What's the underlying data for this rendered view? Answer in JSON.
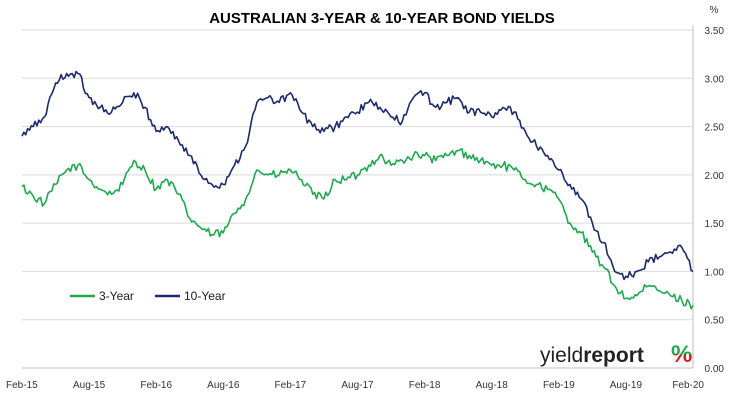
{
  "chart_data": {
    "type": "line",
    "title": "AUSTRALIAN 3-YEAR & 10-YEAR BOND YIELDS",
    "y_unit": "%",
    "ylim": [
      0,
      3.5
    ],
    "y_ticks": [
      "0.00",
      "0.50",
      "1.00",
      "1.50",
      "2.00",
      "2.50",
      "3.00",
      "3.50"
    ],
    "x_ticks": [
      "Feb-15",
      "Aug-15",
      "Feb-16",
      "Aug-16",
      "Feb-17",
      "Aug-17",
      "Feb-18",
      "Aug-18",
      "Feb-19",
      "Aug-19",
      "Feb-20"
    ],
    "grid": "horizontal",
    "legend_position": "lower-left",
    "series": [
      {
        "name": "3-Year",
        "color": "#1fa84f",
        "x": [
          "2015-02",
          "2015-03",
          "2015-04",
          "2015-05",
          "2015-06",
          "2015-07",
          "2015-08",
          "2015-09",
          "2015-10",
          "2015-11",
          "2015-12",
          "2016-01",
          "2016-02",
          "2016-03",
          "2016-04",
          "2016-05",
          "2016-06",
          "2016-07",
          "2016-08",
          "2016-09",
          "2016-10",
          "2016-11",
          "2016-12",
          "2017-01",
          "2017-02",
          "2017-03",
          "2017-04",
          "2017-05",
          "2017-06",
          "2017-07",
          "2017-08",
          "2017-09",
          "2017-10",
          "2017-11",
          "2017-12",
          "2018-01",
          "2018-02",
          "2018-03",
          "2018-04",
          "2018-05",
          "2018-06",
          "2018-07",
          "2018-08",
          "2018-09",
          "2018-10",
          "2018-11",
          "2018-12",
          "2019-01",
          "2019-02",
          "2019-03",
          "2019-04",
          "2019-05",
          "2019-06",
          "2019-07",
          "2019-08",
          "2019-09",
          "2019-10",
          "2019-11",
          "2019-12",
          "2020-01",
          "2020-02"
        ],
        "y": [
          1.88,
          1.78,
          1.7,
          1.9,
          2.05,
          2.1,
          1.95,
          1.85,
          1.8,
          1.9,
          2.15,
          2.05,
          1.85,
          1.95,
          1.8,
          1.55,
          1.45,
          1.38,
          1.4,
          1.6,
          1.75,
          2.05,
          2.0,
          2.0,
          2.05,
          1.95,
          1.8,
          1.75,
          1.95,
          1.95,
          2.0,
          2.1,
          2.2,
          2.1,
          2.15,
          2.2,
          2.2,
          2.15,
          2.2,
          2.25,
          2.2,
          2.15,
          2.1,
          2.1,
          2.05,
          1.95,
          1.9,
          1.85,
          1.75,
          1.5,
          1.4,
          1.2,
          1.05,
          0.85,
          0.72,
          0.75,
          0.85,
          0.8,
          0.75,
          0.7,
          0.65
        ]
      },
      {
        "name": "10-Year",
        "color": "#1b2a6b",
        "x": [
          "2015-02",
          "2015-03",
          "2015-04",
          "2015-05",
          "2015-06",
          "2015-07",
          "2015-08",
          "2015-09",
          "2015-10",
          "2015-11",
          "2015-12",
          "2016-01",
          "2016-02",
          "2016-03",
          "2016-04",
          "2016-05",
          "2016-06",
          "2016-07",
          "2016-08",
          "2016-09",
          "2016-10",
          "2016-11",
          "2016-12",
          "2017-01",
          "2017-02",
          "2017-03",
          "2017-04",
          "2017-05",
          "2017-06",
          "2017-07",
          "2017-08",
          "2017-09",
          "2017-10",
          "2017-11",
          "2017-12",
          "2018-01",
          "2018-02",
          "2018-03",
          "2018-04",
          "2018-05",
          "2018-06",
          "2018-07",
          "2018-08",
          "2018-09",
          "2018-10",
          "2018-11",
          "2018-12",
          "2019-01",
          "2019-02",
          "2019-03",
          "2019-04",
          "2019-05",
          "2019-06",
          "2019-07",
          "2019-08",
          "2019-09",
          "2019-10",
          "2019-11",
          "2019-12",
          "2020-01",
          "2020-02"
        ],
        "y": [
          2.4,
          2.5,
          2.6,
          2.95,
          3.05,
          3.05,
          2.8,
          2.7,
          2.65,
          2.75,
          2.85,
          2.7,
          2.45,
          2.5,
          2.35,
          2.2,
          2.0,
          1.9,
          1.9,
          2.1,
          2.3,
          2.75,
          2.8,
          2.75,
          2.85,
          2.65,
          2.5,
          2.45,
          2.5,
          2.6,
          2.65,
          2.75,
          2.7,
          2.6,
          2.55,
          2.8,
          2.85,
          2.7,
          2.75,
          2.8,
          2.65,
          2.65,
          2.6,
          2.7,
          2.65,
          2.45,
          2.3,
          2.2,
          2.05,
          1.9,
          1.75,
          1.5,
          1.3,
          1.0,
          0.95,
          1.0,
          1.1,
          1.15,
          1.2,
          1.25,
          1.0
        ]
      }
    ]
  },
  "logo": {
    "text_regular": "yield",
    "text_bold": "report",
    "symbol": "%",
    "symbol_color_top": "#1fa84f",
    "symbol_color_bottom": "#d71920"
  }
}
